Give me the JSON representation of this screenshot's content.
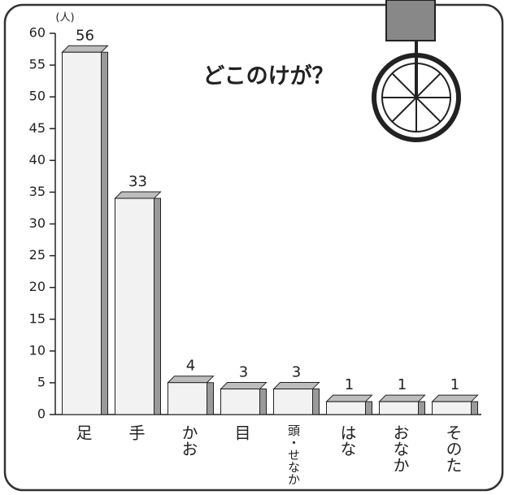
{
  "chart_data": {
    "type": "bar",
    "title": "どこのけが？",
    "y_label": "(人)",
    "categories": [
      "足",
      "手",
      "かお",
      "目",
      "頭・せなか",
      "はな",
      "おなか",
      "そのた"
    ],
    "values": [
      56,
      33,
      4,
      3,
      3,
      1,
      1,
      1
    ],
    "color": "#f2f2f2",
    "ylim": [
      0,
      60
    ],
    "yticks": [
      0,
      5,
      10,
      15,
      20,
      25,
      30,
      35,
      40,
      45,
      50,
      55,
      60
    ],
    "grid": false
  }
}
